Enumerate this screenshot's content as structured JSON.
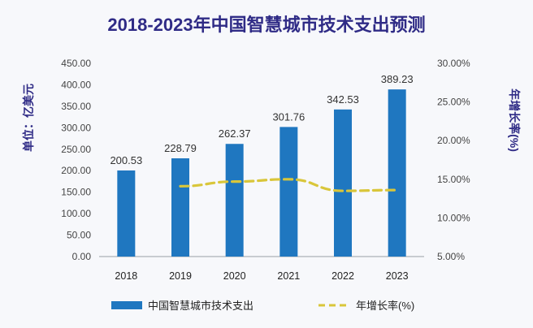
{
  "chart_data": {
    "type": "bar",
    "title": "2018-2023年中国智慧城市技术支出预测",
    "categories": [
      "2018",
      "2019",
      "2020",
      "2021",
      "2022",
      "2023"
    ],
    "series": [
      {
        "name": "中国智慧城市技术支出",
        "type": "bar",
        "axis": "left",
        "values": [
          200.53,
          228.79,
          262.37,
          301.76,
          342.53,
          389.23
        ],
        "labels": [
          "200.53",
          "228.79",
          "262.37",
          "301.76",
          "342.53",
          "389.23"
        ],
        "color": "#1f77c0"
      },
      {
        "name": "年增长率(%)",
        "type": "line",
        "style": "dashed",
        "axis": "right",
        "values": [
          null,
          14.1,
          14.7,
          15.0,
          13.5,
          13.6
        ],
        "color": "#d9c63a"
      }
    ],
    "ylabel": "单位：亿美元",
    "ylabel_right": "年增长率(%)",
    "ylim": [
      0,
      450
    ],
    "yticks": [
      "0.00",
      "50.00",
      "100.00",
      "150.00",
      "200.00",
      "250.00",
      "300.00",
      "350.00",
      "400.00",
      "450.00"
    ],
    "ylim_right": [
      5,
      30
    ],
    "yticks_right": [
      "5.00%",
      "10.00%",
      "15.00%",
      "20.00%",
      "25.00%",
      "30.00%"
    ],
    "grid": false,
    "legend": "bottom"
  }
}
